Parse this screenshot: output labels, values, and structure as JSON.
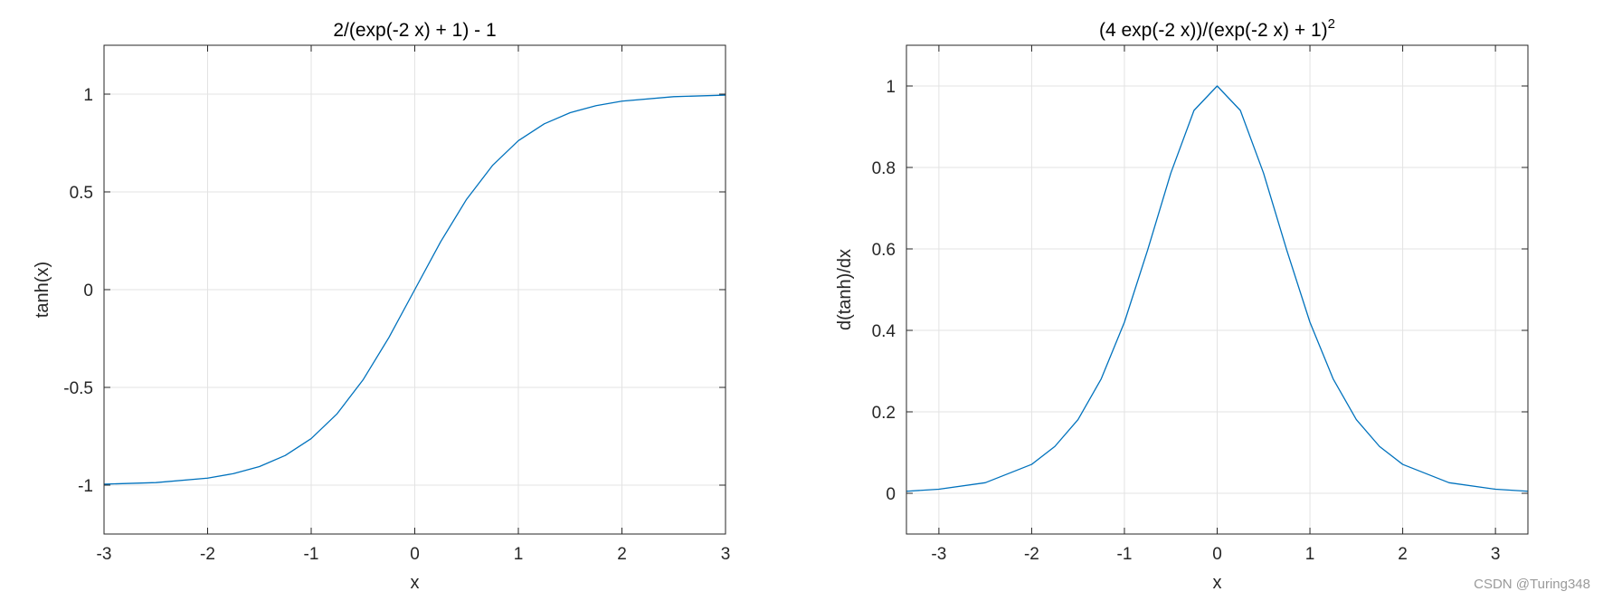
{
  "watermark": "CSDN @Turing348",
  "colors": {
    "line": "#0072BD",
    "grid": "#e3e3e3",
    "axis": "#262626"
  },
  "chart_data": [
    {
      "type": "line",
      "title": "2/(exp(-2 x) + 1) - 1",
      "title_superscript": "",
      "xlabel": "x",
      "ylabel": "tanh(x)",
      "xlim": [
        -3,
        3
      ],
      "ylim": [
        -1.25,
        1.25
      ],
      "grid": true,
      "xticks": [
        -3,
        -2,
        -1,
        0,
        1,
        2,
        3
      ],
      "xtick_labels": [
        "-3",
        "-2",
        "-1",
        "0",
        "1",
        "2",
        "3"
      ],
      "yticks": [
        -1,
        -0.5,
        0,
        0.5,
        1
      ],
      "ytick_labels": [
        "-1",
        "-0.5",
        "0",
        "0.5",
        "1"
      ],
      "series": [
        {
          "x": [
            -3,
            -2.5,
            -2,
            -1.75,
            -1.5,
            -1.25,
            -1,
            -0.75,
            -0.5,
            -0.25,
            0,
            0.25,
            0.5,
            0.75,
            1,
            1.25,
            1.5,
            1.75,
            2,
            2.5,
            3
          ],
          "y": [
            -0.995,
            -0.987,
            -0.964,
            -0.941,
            -0.905,
            -0.848,
            -0.762,
            -0.635,
            -0.462,
            -0.245,
            0,
            0.245,
            0.462,
            0.635,
            0.762,
            0.848,
            0.905,
            0.941,
            0.964,
            0.987,
            0.995
          ]
        }
      ]
    },
    {
      "type": "line",
      "title": "(4 exp(-2 x))/(exp(-2 x) + 1)",
      "title_superscript": "2",
      "xlabel": "x",
      "ylabel": "d(tanh)/dx",
      "xlim": [
        -3.35,
        3.35
      ],
      "ylim": [
        -0.1,
        1.1
      ],
      "grid": true,
      "xticks": [
        -3,
        -2,
        -1,
        0,
        1,
        2,
        3
      ],
      "xtick_labels": [
        "-3",
        "-2",
        "-1",
        "0",
        "1",
        "2",
        "3"
      ],
      "yticks": [
        0,
        0.2,
        0.4,
        0.6,
        0.8,
        1
      ],
      "ytick_labels": [
        "0",
        "0.2",
        "0.4",
        "0.6",
        "0.8",
        "1"
      ],
      "series": [
        {
          "x": [
            -3.35,
            -3,
            -2.5,
            -2,
            -1.75,
            -1.5,
            -1.25,
            -1,
            -0.75,
            -0.5,
            -0.25,
            0,
            0.25,
            0.5,
            0.75,
            1,
            1.25,
            1.5,
            1.75,
            2,
            2.5,
            3,
            3.35
          ],
          "y": [
            0.005,
            0.01,
            0.026,
            0.071,
            0.115,
            0.181,
            0.281,
            0.42,
            0.597,
            0.786,
            0.94,
            1,
            0.94,
            0.786,
            0.597,
            0.42,
            0.281,
            0.181,
            0.115,
            0.071,
            0.026,
            0.01,
            0.005
          ]
        }
      ]
    }
  ]
}
